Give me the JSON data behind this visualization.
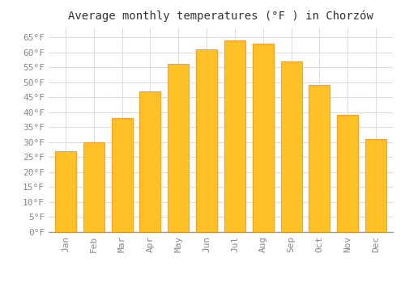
{
  "title": "Average monthly temperatures (°F ) in Chorzów",
  "months": [
    "Jan",
    "Feb",
    "Mar",
    "Apr",
    "May",
    "Jun",
    "Jul",
    "Aug",
    "Sep",
    "Oct",
    "Nov",
    "Dec"
  ],
  "values": [
    27,
    30,
    38,
    47,
    56,
    61,
    64,
    63,
    57,
    49,
    39,
    31
  ],
  "bar_color": "#FFC125",
  "bar_edge_color": "#FFA020",
  "background_color": "#ffffff",
  "grid_color": "#dddddd",
  "text_color": "#888888",
  "ylim": [
    0,
    68
  ],
  "yticks": [
    0,
    5,
    10,
    15,
    20,
    25,
    30,
    35,
    40,
    45,
    50,
    55,
    60,
    65
  ],
  "title_fontsize": 10,
  "tick_fontsize": 8,
  "bar_width": 0.75
}
